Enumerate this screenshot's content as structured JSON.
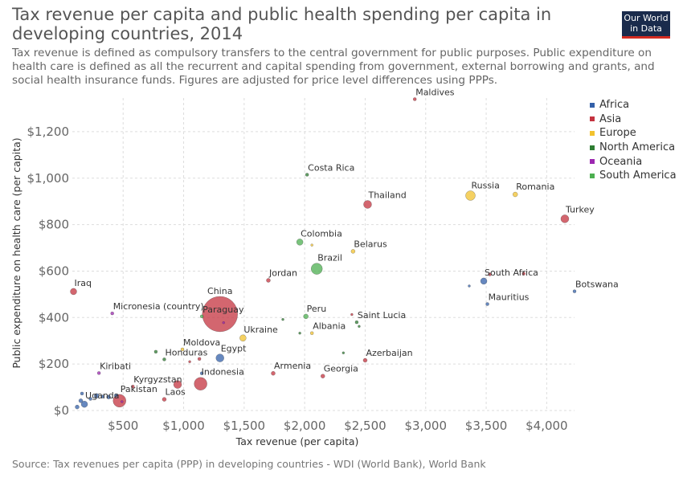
{
  "title": "Tax revenue per capita and public health spending per capita in developing countries, 2014",
  "subtitle": "Tax revenue is defined as compulsory transfers to the central government for public purposes. Public expenditure on health care is defined as all the recurrent and capital spending from government, external borrowing and grants, and social health insurance funds. Figures are adjusted for price level differences using PPPs.",
  "logo": {
    "line1": "Our World",
    "line2": "in Data"
  },
  "source": "Source: Tax revenues per capita (PPP) in developing countries - WDI (World Bank), World Bank",
  "colors": {
    "Africa": "#3360a9",
    "Asia": "#c4333f",
    "Europe": "#f2c22e",
    "North America": "#2e7d32",
    "Oceania": "#9c27b0",
    "South America": "#4caf50"
  },
  "chart_data": {
    "type": "scatter",
    "xlabel": "Tax revenue (per capita)",
    "ylabel": "Public expenditure on health care (per capita)",
    "xlim": [
      80,
      4230
    ],
    "ylim": [
      0,
      1345
    ],
    "x_ticks": [
      {
        "value": 500,
        "label": "$500"
      },
      {
        "value": 1000,
        "label": "$1,000"
      },
      {
        "value": 1500,
        "label": "$1,500"
      },
      {
        "value": 2000,
        "label": "$2,000"
      },
      {
        "value": 2500,
        "label": "$2,500"
      },
      {
        "value": 3000,
        "label": "$3,000"
      },
      {
        "value": 3500,
        "label": "$3,500"
      },
      {
        "value": 4000,
        "label": "$4,000"
      }
    ],
    "y_ticks": [
      {
        "value": 0,
        "label": "$0"
      },
      {
        "value": 200,
        "label": "$200"
      },
      {
        "value": 400,
        "label": "$400"
      },
      {
        "value": 600,
        "label": "$600"
      },
      {
        "value": 800,
        "label": "$800"
      },
      {
        "value": 1000,
        "label": "$1,000"
      },
      {
        "value": 1200,
        "label": "$1,200"
      }
    ],
    "legend": [
      "Africa",
      "Asia",
      "Europe",
      "North America",
      "Oceania",
      "South America"
    ],
    "legend_position": "right",
    "grid": true,
    "points": [
      {
        "label": "Maldives",
        "region": "Asia",
        "x": 2910,
        "y": 1340,
        "r": 2
      },
      {
        "label": "Costa Rica",
        "region": "North America",
        "x": 2020,
        "y": 1015,
        "r": 2
      },
      {
        "label": "Russia",
        "region": "Europe",
        "x": 3370,
        "y": 925,
        "r": 6
      },
      {
        "label": "Romania",
        "region": "Europe",
        "x": 3740,
        "y": 930,
        "r": 3
      },
      {
        "label": "Thailand",
        "region": "Asia",
        "x": 2520,
        "y": 887,
        "r": 5
      },
      {
        "label": "Turkey",
        "region": "Asia",
        "x": 4150,
        "y": 825,
        "r": 5
      },
      {
        "label": "Colombia",
        "region": "South America",
        "x": 1960,
        "y": 725,
        "r": 4
      },
      {
        "label": "",
        "region": "Europe",
        "x": 2060,
        "y": 712,
        "r": 1.5
      },
      {
        "label": "Belarus",
        "region": "Europe",
        "x": 2400,
        "y": 685,
        "r": 2.5
      },
      {
        "label": "Brazil",
        "region": "South America",
        "x": 2100,
        "y": 610,
        "r": 7
      },
      {
        "label": "Jordan",
        "region": "Asia",
        "x": 1700,
        "y": 560,
        "r": 2.5
      },
      {
        "label": "South Africa",
        "region": "Africa",
        "x": 3480,
        "y": 557,
        "r": 4
      },
      {
        "label": "",
        "region": "Asia",
        "x": 3530,
        "y": 586,
        "r": 2
      },
      {
        "label": "",
        "region": "Asia",
        "x": 3810,
        "y": 589,
        "r": 2
      },
      {
        "label": "",
        "region": "Africa",
        "x": 3360,
        "y": 536,
        "r": 1.5
      },
      {
        "label": "Botswana",
        "region": "Africa",
        "x": 4230,
        "y": 513,
        "r": 2
      },
      {
        "label": "Iraq",
        "region": "Asia",
        "x": 90,
        "y": 512,
        "r": 4
      },
      {
        "label": "Mauritius",
        "region": "Africa",
        "x": 3510,
        "y": 458,
        "r": 2
      },
      {
        "label": "Micronesia (country)",
        "region": "Oceania",
        "x": 410,
        "y": 418,
        "r": 2
      },
      {
        "label": "China",
        "region": "Asia",
        "x": 1300,
        "y": 415,
        "r": 22
      },
      {
        "label": "Paraguay",
        "region": "South America",
        "x": 1150,
        "y": 405,
        "r": 2
      },
      {
        "label": "",
        "region": "Oceania",
        "x": 1330,
        "y": 378,
        "r": 1.5
      },
      {
        "label": "Peru",
        "region": "South America",
        "x": 2010,
        "y": 405,
        "r": 3
      },
      {
        "label": "",
        "region": "Asia",
        "x": 2390,
        "y": 413,
        "r": 1.5
      },
      {
        "label": "Saint Lucia",
        "region": "North America",
        "x": 2430,
        "y": 380,
        "r": 2
      },
      {
        "label": "",
        "region": "North America",
        "x": 1820,
        "y": 392,
        "r": 1.5
      },
      {
        "label": "Albania",
        "region": "Europe",
        "x": 2060,
        "y": 333,
        "r": 2
      },
      {
        "label": "",
        "region": "North America",
        "x": 1960,
        "y": 333,
        "r": 1.5
      },
      {
        "label": "",
        "region": "North America",
        "x": 2450,
        "y": 362,
        "r": 1.5
      },
      {
        "label": "Ukraine",
        "region": "Europe",
        "x": 1490,
        "y": 312,
        "r": 4
      },
      {
        "label": "Moldova",
        "region": "Europe",
        "x": 990,
        "y": 263,
        "r": 2
      },
      {
        "label": "",
        "region": "North America",
        "x": 770,
        "y": 253,
        "r": 2
      },
      {
        "label": "Honduras",
        "region": "North America",
        "x": 840,
        "y": 220,
        "r": 2
      },
      {
        "label": "",
        "region": "Asia",
        "x": 1050,
        "y": 210,
        "r": 1.5
      },
      {
        "label": "",
        "region": "Asia",
        "x": 1130,
        "y": 222,
        "r": 2
      },
      {
        "label": "Egypt",
        "region": "Africa",
        "x": 1300,
        "y": 226,
        "r": 5
      },
      {
        "label": "",
        "region": "North America",
        "x": 2320,
        "y": 248,
        "r": 1.5
      },
      {
        "label": "Azerbaijan",
        "region": "Asia",
        "x": 2500,
        "y": 216,
        "r": 2.5
      },
      {
        "label": "Kiribati",
        "region": "Oceania",
        "x": 300,
        "y": 161,
        "r": 2
      },
      {
        "label": "Indonesia",
        "region": "Asia",
        "x": 1140,
        "y": 115,
        "r": 8
      },
      {
        "label": "",
        "region": "Africa",
        "x": 1150,
        "y": 160,
        "r": 2
      },
      {
        "label": "Armenia",
        "region": "Asia",
        "x": 1740,
        "y": 160,
        "r": 2.5
      },
      {
        "label": "Georgia",
        "region": "Asia",
        "x": 2150,
        "y": 148,
        "r": 2.5
      },
      {
        "label": "Kyrgyzstan",
        "region": "Asia",
        "x": 580,
        "y": 103,
        "r": 2
      },
      {
        "label": "",
        "region": "Asia",
        "x": 950,
        "y": 112,
        "r": 5
      },
      {
        "label": "Pakistan",
        "region": "Asia",
        "x": 470,
        "y": 42,
        "r": 8
      },
      {
        "label": "Laos",
        "region": "Asia",
        "x": 840,
        "y": 48,
        "r": 2.5
      },
      {
        "label": "Uganda",
        "region": "Africa",
        "x": 180,
        "y": 27,
        "r": 4
      },
      {
        "label": "",
        "region": "Africa",
        "x": 120,
        "y": 15,
        "r": 2.5
      },
      {
        "label": "",
        "region": "Africa",
        "x": 150,
        "y": 42,
        "r": 2.5
      },
      {
        "label": "",
        "region": "Africa",
        "x": 160,
        "y": 73,
        "r": 2
      },
      {
        "label": "",
        "region": "Africa",
        "x": 230,
        "y": 50,
        "r": 2
      },
      {
        "label": "",
        "region": "Africa",
        "x": 280,
        "y": 63,
        "r": 3
      },
      {
        "label": "",
        "region": "Africa",
        "x": 330,
        "y": 60,
        "r": 2
      },
      {
        "label": "",
        "region": "Africa",
        "x": 380,
        "y": 58,
        "r": 2.5
      },
      {
        "label": "",
        "region": "Africa",
        "x": 440,
        "y": 65,
        "r": 2
      },
      {
        "label": "",
        "region": "Oceania",
        "x": 490,
        "y": 38,
        "r": 1.5
      }
    ]
  }
}
